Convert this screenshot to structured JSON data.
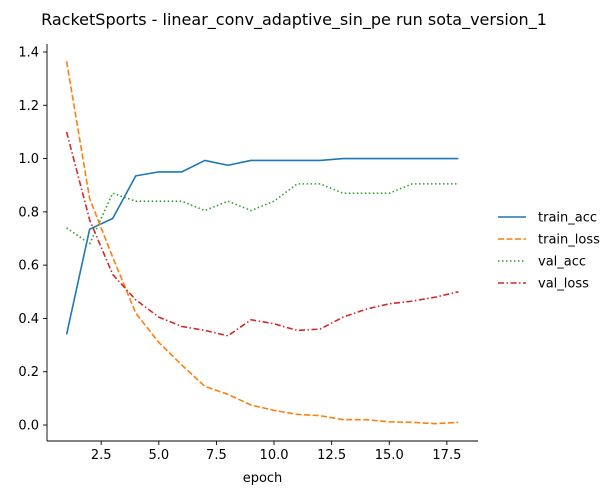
{
  "chart_data": {
    "type": "line",
    "title": "RacketSports - linear_conv_adaptive_sin_pe run sota_version_1",
    "xlabel": "epoch",
    "ylabel": "",
    "xlim": [
      0.15,
      18.85
    ],
    "ylim": [
      -0.06,
      1.43
    ],
    "xticks": [
      2.5,
      5.0,
      7.5,
      10.0,
      12.5,
      15.0,
      17.5
    ],
    "xtick_labels": [
      "2.5",
      "5.0",
      "7.5",
      "10.0",
      "12.5",
      "15.0",
      "17.5"
    ],
    "yticks": [
      0.0,
      0.2,
      0.4,
      0.6,
      0.8,
      1.0,
      1.2,
      1.4
    ],
    "ytick_labels": [
      "0.0",
      "0.2",
      "0.4",
      "0.6",
      "0.8",
      "1.0",
      "1.2",
      "1.4"
    ],
    "grid": false,
    "legend_position": "right",
    "x": [
      1,
      2,
      3,
      4,
      5,
      6,
      7,
      8,
      9,
      10,
      11,
      12,
      13,
      14,
      15,
      16,
      17,
      18
    ],
    "series": [
      {
        "name": "train_acc",
        "color": "#1f77b4",
        "dash": "solid",
        "values": [
          0.34,
          0.735,
          0.775,
          0.935,
          0.95,
          0.95,
          0.993,
          0.975,
          0.993,
          0.993,
          0.993,
          0.993,
          1.0,
          1.0,
          1.0,
          1.0,
          1.0,
          1.0
        ]
      },
      {
        "name": "train_loss",
        "color": "#ff7f0e",
        "dash": "dashed",
        "values": [
          1.365,
          0.85,
          0.63,
          0.42,
          0.31,
          0.225,
          0.145,
          0.115,
          0.075,
          0.055,
          0.04,
          0.035,
          0.02,
          0.02,
          0.012,
          0.01,
          0.005,
          0.01
        ]
      },
      {
        "name": "val_acc",
        "color": "#2ca02c",
        "dash": "dotted",
        "values": [
          0.74,
          0.68,
          0.87,
          0.84,
          0.84,
          0.84,
          0.805,
          0.84,
          0.805,
          0.84,
          0.905,
          0.905,
          0.87,
          0.87,
          0.87,
          0.905,
          0.905,
          0.905
        ]
      },
      {
        "name": "val_loss",
        "color": "#d62728",
        "dash": "dashdot",
        "values": [
          1.1,
          0.77,
          0.565,
          0.47,
          0.405,
          0.37,
          0.355,
          0.335,
          0.395,
          0.38,
          0.355,
          0.36,
          0.405,
          0.435,
          0.455,
          0.465,
          0.48,
          0.5
        ]
      }
    ]
  }
}
